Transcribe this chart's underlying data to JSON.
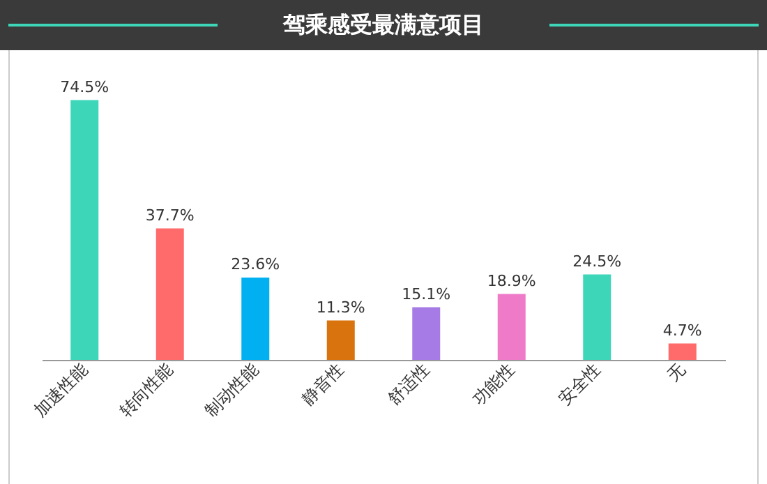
{
  "chart_data": {
    "type": "bar",
    "title": "驾乘感受最满意项目",
    "categories": [
      "加速性能",
      "转向性能",
      "制动性能",
      "静音性",
      "舒适性",
      "功能性",
      "安全性",
      "无"
    ],
    "values": [
      74.5,
      37.7,
      23.6,
      11.3,
      15.1,
      18.9,
      24.5,
      4.7
    ],
    "colors": [
      "#3dd6b8",
      "#ff6b6b",
      "#00b0f0",
      "#d9730d",
      "#a77be6",
      "#ee7ac8",
      "#3dd6b8",
      "#ff6b6b"
    ],
    "value_labels": [
      "74.5%",
      "37.7%",
      "23.6%",
      "11.3%",
      "15.1%",
      "18.9%",
      "24.5%",
      "4.7%"
    ],
    "grid": false
  }
}
